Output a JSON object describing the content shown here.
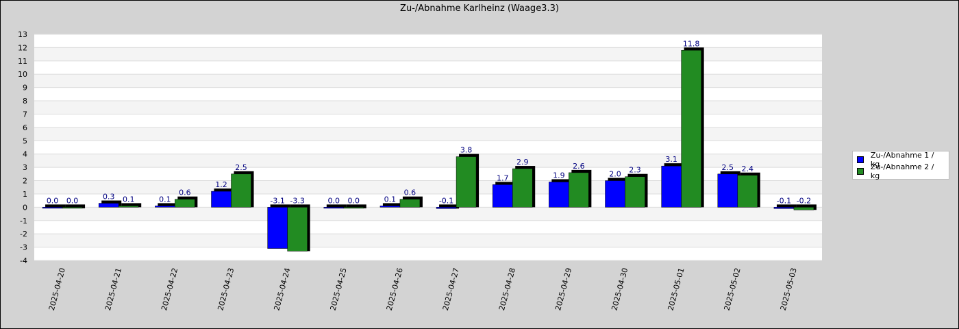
{
  "chart_data": {
    "type": "bar",
    "title": "Zu-/Abnahme Karlheinz (Waage3.3)",
    "categories": [
      "2025-04-20",
      "2025-04-21",
      "2025-04-22",
      "2025-04-23",
      "2025-04-24",
      "2025-04-25",
      "2025-04-26",
      "2025-04-27",
      "2025-04-28",
      "2025-04-29",
      "2025-04-30",
      "2025-05-01",
      "2025-05-02",
      "2025-05-03"
    ],
    "series": [
      {
        "name": "Zu-/Abnahme 1 / kg",
        "color": "#0000ff",
        "values": [
          0.0,
          0.3,
          0.1,
          1.2,
          -3.1,
          0.0,
          0.1,
          -0.1,
          1.7,
          1.9,
          2.0,
          3.1,
          2.5,
          -0.1
        ],
        "labels": [
          "0.0",
          "0.3",
          "0.1",
          "1.2",
          "-3.1",
          "0.0",
          "0.1",
          "-0.1",
          "1.7",
          "1.9",
          "2.0",
          "3.1",
          "2.5",
          "-0.1"
        ]
      },
      {
        "name": "Zu-/Abnahme 2 / kg",
        "color": "#228b22",
        "values": [
          0.0,
          0.1,
          0.6,
          2.5,
          -3.3,
          0.0,
          0.6,
          3.8,
          2.9,
          2.6,
          2.3,
          11.8,
          2.4,
          -0.2
        ],
        "labels": [
          "0.0",
          "0.1",
          "0.6",
          "2.5",
          "-3.3",
          "0.0",
          "0.6",
          "3.8",
          "2.9",
          "2.6",
          "2.3",
          "11.8",
          "2.4",
          "-0.2"
        ]
      }
    ],
    "y_ticks": [
      "13",
      "12",
      "11",
      "10",
      "9",
      "8",
      "7",
      "6",
      "5",
      "4",
      "3",
      "2",
      "1",
      "0",
      "-1",
      "-2",
      "-3",
      "-4"
    ],
    "ylim": [
      -4,
      13
    ],
    "grid": true,
    "legend_position": "right"
  }
}
